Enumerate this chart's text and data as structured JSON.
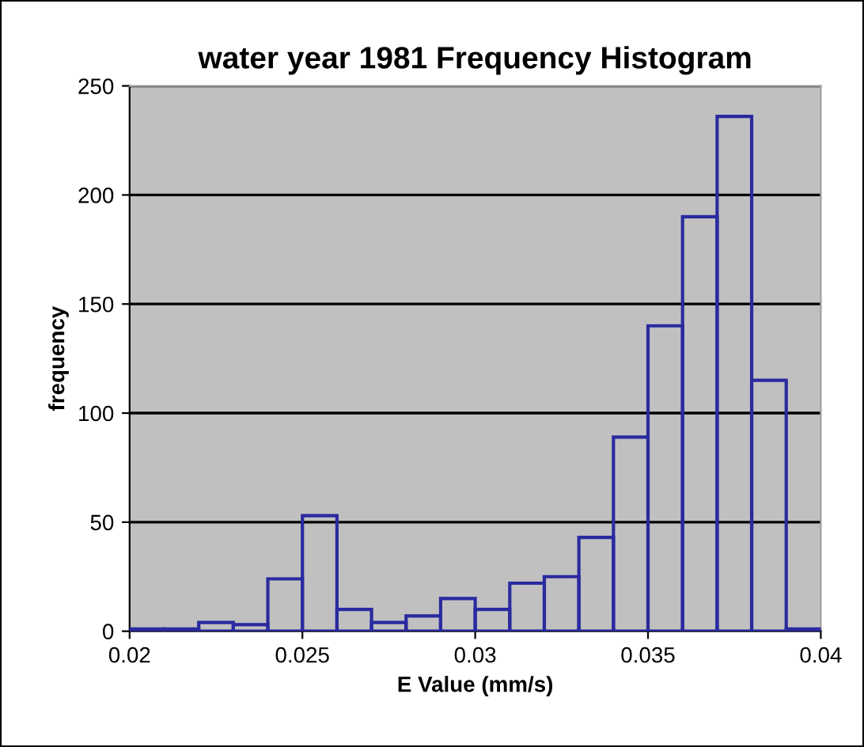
{
  "chart_data": {
    "type": "histogram",
    "title": "water year 1981 Frequency Histogram",
    "xlabel": "E Value (mm/s)",
    "ylabel": "frequency",
    "bins": [
      0.02,
      0.021,
      0.022,
      0.023,
      0.024,
      0.025,
      0.026,
      0.027,
      0.028,
      0.029,
      0.03,
      0.031,
      0.032,
      0.033,
      0.034,
      0.035,
      0.036,
      0.037,
      0.038,
      0.039,
      0.04
    ],
    "values": [
      1,
      1,
      4,
      3,
      24,
      53,
      10,
      4,
      7,
      15,
      10,
      22,
      25,
      43,
      89,
      140,
      190,
      236,
      115,
      1
    ],
    "color": "#2a2aa0",
    "xlim": [
      0.02,
      0.04
    ],
    "xticks": [
      0.02,
      0.025,
      0.03,
      0.035,
      0.04
    ],
    "ylim": [
      0,
      250
    ],
    "yticks": [
      0,
      50,
      100,
      150,
      200,
      250
    ],
    "grid": "y"
  }
}
